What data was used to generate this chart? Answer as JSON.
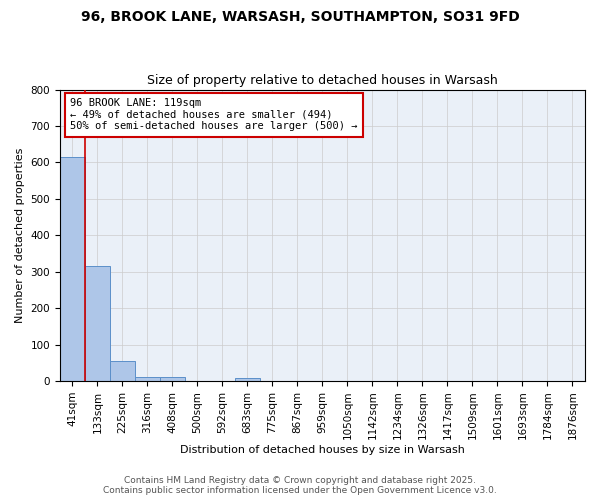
{
  "title": "96, BROOK LANE, WARSASH, SOUTHAMPTON, SO31 9FD",
  "subtitle": "Size of property relative to detached houses in Warsash",
  "xlabel": "Distribution of detached houses by size in Warsash",
  "ylabel": "Number of detached properties",
  "bin_labels": [
    "41sqm",
    "133sqm",
    "225sqm",
    "316sqm",
    "408sqm",
    "500sqm",
    "592sqm",
    "683sqm",
    "775sqm",
    "867sqm",
    "959sqm",
    "1050sqm",
    "1142sqm",
    "1234sqm",
    "1326sqm",
    "1417sqm",
    "1509sqm",
    "1601sqm",
    "1693sqm",
    "1784sqm",
    "1876sqm"
  ],
  "bar_values": [
    615,
    315,
    55,
    10,
    12,
    0,
    0,
    7,
    0,
    0,
    0,
    0,
    0,
    0,
    0,
    0,
    0,
    0,
    0,
    0,
    0
  ],
  "bar_color": "#aec6e8",
  "bar_edge_color": "#5b8fc9",
  "ylim": [
    0,
    800
  ],
  "yticks": [
    0,
    100,
    200,
    300,
    400,
    500,
    600,
    700,
    800
  ],
  "red_line_x": 1.0,
  "annotation_text": "96 BROOK LANE: 119sqm\n← 49% of detached houses are smaller (494)\n50% of semi-detached houses are larger (500) →",
  "annotation_box_color": "#ffffff",
  "annotation_box_edge": "#cc0000",
  "grid_color": "#cccccc",
  "bg_color": "#eaf0f8",
  "footer1": "Contains HM Land Registry data © Crown copyright and database right 2025.",
  "footer2": "Contains public sector information licensed under the Open Government Licence v3.0.",
  "title_fontsize": 10,
  "subtitle_fontsize": 9,
  "axis_label_fontsize": 8,
  "tick_fontsize": 7.5,
  "footer_fontsize": 6.5
}
